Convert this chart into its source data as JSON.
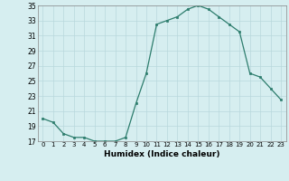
{
  "x": [
    0,
    1,
    2,
    3,
    4,
    5,
    6,
    7,
    8,
    9,
    10,
    11,
    12,
    13,
    14,
    15,
    16,
    17,
    18,
    19,
    20,
    21,
    22,
    23
  ],
  "y": [
    20.0,
    19.5,
    18.0,
    17.5,
    17.5,
    17.0,
    17.0,
    17.0,
    17.5,
    22.0,
    26.0,
    32.5,
    33.0,
    33.5,
    34.5,
    35.0,
    34.5,
    33.5,
    32.5,
    31.5,
    26.0,
    25.5,
    24.0,
    22.5
  ],
  "xlabel": "Humidex (Indice chaleur)",
  "ylim": [
    17,
    35
  ],
  "xlim": [
    -0.5,
    23.5
  ],
  "yticks": [
    17,
    19,
    21,
    23,
    25,
    27,
    29,
    31,
    33,
    35
  ],
  "xticks": [
    0,
    1,
    2,
    3,
    4,
    5,
    6,
    7,
    8,
    9,
    10,
    11,
    12,
    13,
    14,
    15,
    16,
    17,
    18,
    19,
    20,
    21,
    22,
    23
  ],
  "line_color": "#2d7d6d",
  "marker_color": "#2d7d6d",
  "bg_color": "#d6eef0",
  "grid_color": "#b8d8dc"
}
